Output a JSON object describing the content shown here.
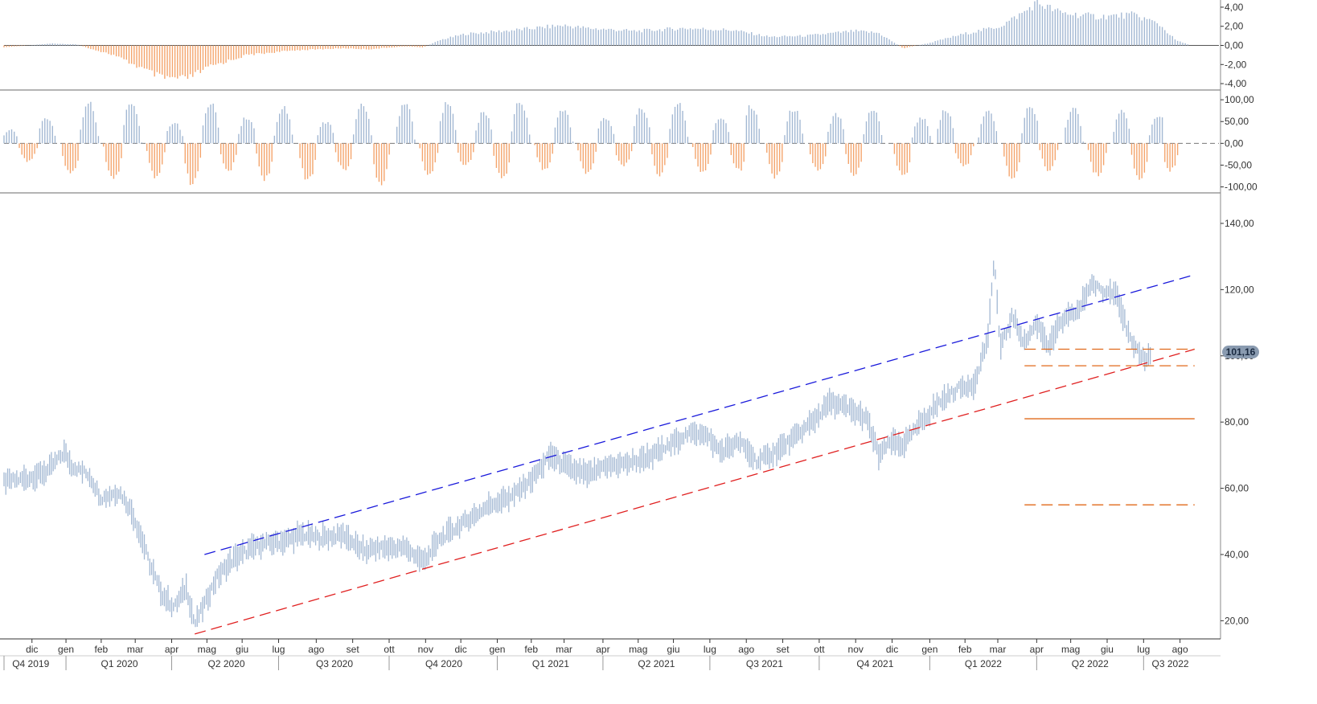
{
  "colors": {
    "positive": "#a3b8d3",
    "negative": "#f4a56d",
    "price": "#a3b8d3",
    "upper_channel": "#1a1adb",
    "lower_channel": "#e02020",
    "levels": "#e0691a",
    "axis": "#333333",
    "divider": "#888888",
    "badge_bg": "#8a9bb0",
    "badge_text": "#1a2a40"
  },
  "chart_data": [
    {
      "type": "bar",
      "panel": "momentum",
      "ylim": [
        -4.5,
        4.5
      ],
      "y_ticks": [
        "4,00",
        "2,00",
        "0,00",
        "-2,00",
        "-4,00"
      ],
      "y_tick_values": [
        4,
        2,
        0,
        -2,
        -4
      ],
      "envelope": [
        [
          0,
          -0.2
        ],
        [
          0.04,
          0.2
        ],
        [
          0.06,
          0.1
        ],
        [
          0.07,
          -0.3
        ],
        [
          0.09,
          -1.0
        ],
        [
          0.11,
          -2.2
        ],
        [
          0.13,
          -3.4
        ],
        [
          0.15,
          -3.5
        ],
        [
          0.17,
          -2.2
        ],
        [
          0.2,
          -1.0
        ],
        [
          0.24,
          -0.5
        ],
        [
          0.28,
          -0.3
        ],
        [
          0.3,
          -0.4
        ],
        [
          0.33,
          -0.1
        ],
        [
          0.345,
          -0.2
        ],
        [
          0.36,
          0.6
        ],
        [
          0.38,
          1.2
        ],
        [
          0.42,
          1.6
        ],
        [
          0.46,
          2.1
        ],
        [
          0.48,
          1.8
        ],
        [
          0.52,
          1.5
        ],
        [
          0.56,
          1.8
        ],
        [
          0.6,
          1.6
        ],
        [
          0.63,
          0.9
        ],
        [
          0.66,
          1.0
        ],
        [
          0.7,
          1.5
        ],
        [
          0.72,
          1.3
        ],
        [
          0.74,
          -0.3
        ],
        [
          0.76,
          0.2
        ],
        [
          0.79,
          1.2
        ],
        [
          0.82,
          2.0
        ],
        [
          0.84,
          3.5
        ],
        [
          0.85,
          4.5
        ],
        [
          0.87,
          3.4
        ],
        [
          0.9,
          3.0
        ],
        [
          0.93,
          3.2
        ],
        [
          0.95,
          2.3
        ],
        [
          0.965,
          0.5
        ],
        [
          0.975,
          0.1
        ]
      ]
    },
    {
      "type": "bar",
      "panel": "oscillator",
      "ylim": [
        -110,
        115
      ],
      "y_ticks": [
        "100,00",
        "50,00",
        "0,00",
        "-50,00",
        "-100,00"
      ],
      "y_tick_values": [
        100,
        50,
        0,
        -50,
        -100
      ],
      "peaks": [
        [
          0.005,
          30
        ],
        [
          0.02,
          -40
        ],
        [
          0.035,
          60
        ],
        [
          0.055,
          -70
        ],
        [
          0.07,
          90
        ],
        [
          0.09,
          -85
        ],
        [
          0.105,
          95
        ],
        [
          0.125,
          -80
        ],
        [
          0.14,
          50
        ],
        [
          0.155,
          -95
        ],
        [
          0.17,
          90
        ],
        [
          0.185,
          -60
        ],
        [
          0.2,
          60
        ],
        [
          0.215,
          -80
        ],
        [
          0.23,
          80
        ],
        [
          0.25,
          -85
        ],
        [
          0.265,
          50
        ],
        [
          0.28,
          -60
        ],
        [
          0.295,
          85
        ],
        [
          0.31,
          -90
        ],
        [
          0.33,
          95
        ],
        [
          0.35,
          -70
        ],
        [
          0.365,
          90
        ],
        [
          0.38,
          -50
        ],
        [
          0.395,
          70
        ],
        [
          0.41,
          -80
        ],
        [
          0.425,
          95
        ],
        [
          0.445,
          -60
        ],
        [
          0.46,
          80
        ],
        [
          0.48,
          -70
        ],
        [
          0.495,
          60
        ],
        [
          0.51,
          -50
        ],
        [
          0.525,
          80
        ],
        [
          0.54,
          -70
        ],
        [
          0.555,
          95
        ],
        [
          0.575,
          -70
        ],
        [
          0.59,
          60
        ],
        [
          0.605,
          -60
        ],
        [
          0.615,
          85
        ],
        [
          0.635,
          -75
        ],
        [
          0.65,
          80
        ],
        [
          0.67,
          -60
        ],
        [
          0.685,
          65
        ],
        [
          0.7,
          -70
        ],
        [
          0.715,
          80
        ],
        [
          0.74,
          -75
        ],
        [
          0.755,
          60
        ],
        [
          0.775,
          75
        ],
        [
          0.79,
          -55
        ],
        [
          0.81,
          80
        ],
        [
          0.83,
          -80
        ],
        [
          0.845,
          85
        ],
        [
          0.86,
          -60
        ],
        [
          0.88,
          80
        ],
        [
          0.9,
          -75
        ],
        [
          0.92,
          70
        ],
        [
          0.935,
          -80
        ],
        [
          0.95,
          65
        ],
        [
          0.96,
          -60
        ]
      ]
    },
    {
      "type": "line",
      "panel": "price",
      "ylim": [
        15,
        148
      ],
      "y_ticks": [
        "140,00",
        "120,00",
        "100,00",
        "80,00",
        "60,00",
        "40,00",
        "20,00"
      ],
      "y_tick_values": [
        140,
        120,
        100,
        80,
        60,
        40,
        20
      ],
      "price_path": [
        [
          0.0,
          62
        ],
        [
          0.02,
          63
        ],
        [
          0.035,
          65
        ],
        [
          0.05,
          71
        ],
        [
          0.055,
          67
        ],
        [
          0.07,
          64
        ],
        [
          0.08,
          57
        ],
        [
          0.095,
          59
        ],
        [
          0.105,
          53
        ],
        [
          0.115,
          43
        ],
        [
          0.12,
          37
        ],
        [
          0.13,
          28
        ],
        [
          0.14,
          24
        ],
        [
          0.15,
          30
        ],
        [
          0.157,
          19
        ],
        [
          0.165,
          25
        ],
        [
          0.175,
          33
        ],
        [
          0.19,
          39
        ],
        [
          0.21,
          43
        ],
        [
          0.23,
          44
        ],
        [
          0.245,
          46
        ],
        [
          0.26,
          45
        ],
        [
          0.28,
          46
        ],
        [
          0.295,
          41
        ],
        [
          0.31,
          42
        ],
        [
          0.33,
          42
        ],
        [
          0.345,
          38
        ],
        [
          0.36,
          45
        ],
        [
          0.38,
          50
        ],
        [
          0.4,
          55
        ],
        [
          0.42,
          58
        ],
        [
          0.435,
          63
        ],
        [
          0.45,
          70
        ],
        [
          0.465,
          66
        ],
        [
          0.48,
          64
        ],
        [
          0.5,
          67
        ],
        [
          0.52,
          68
        ],
        [
          0.54,
          71
        ],
        [
          0.56,
          76
        ],
        [
          0.575,
          77
        ],
        [
          0.59,
          71
        ],
        [
          0.605,
          74
        ],
        [
          0.62,
          68
        ],
        [
          0.635,
          71
        ],
        [
          0.65,
          75
        ],
        [
          0.665,
          80
        ],
        [
          0.68,
          86
        ],
        [
          0.695,
          84
        ],
        [
          0.71,
          81
        ],
        [
          0.72,
          70
        ],
        [
          0.73,
          74
        ],
        [
          0.74,
          73
        ],
        [
          0.755,
          80
        ],
        [
          0.77,
          86
        ],
        [
          0.785,
          90
        ],
        [
          0.8,
          92
        ],
        [
          0.805,
          100
        ],
        [
          0.81,
          105
        ],
        [
          0.815,
          130
        ],
        [
          0.82,
          102
        ],
        [
          0.83,
          112
        ],
        [
          0.84,
          104
        ],
        [
          0.85,
          110
        ],
        [
          0.86,
          103
        ],
        [
          0.87,
          110
        ],
        [
          0.885,
          114
        ],
        [
          0.895,
          122
        ],
        [
          0.905,
          119
        ],
        [
          0.915,
          120
        ],
        [
          0.925,
          107
        ],
        [
          0.93,
          102
        ],
        [
          0.94,
          99
        ],
        [
          0.945,
          101.16
        ]
      ],
      "last_price_label": "101,16",
      "last_price": 101.16,
      "lines": [
        {
          "style": "dashed",
          "color": "upper_channel",
          "from": [
            0.165,
            40
          ],
          "to": [
            0.98,
            124.5
          ]
        },
        {
          "style": "dashed",
          "color": "lower_channel",
          "from": [
            0.157,
            16
          ],
          "to": [
            0.98,
            102
          ]
        },
        {
          "style": "dashed",
          "color": "levels",
          "from": [
            0.84,
            102
          ],
          "to": [
            0.98,
            102
          ]
        },
        {
          "style": "dashed",
          "color": "levels",
          "from": [
            0.84,
            97
          ],
          "to": [
            0.98,
            97
          ]
        },
        {
          "style": "solid",
          "color": "levels",
          "from": [
            0.84,
            81
          ],
          "to": [
            0.98,
            81
          ]
        },
        {
          "style": "dashed",
          "color": "levels",
          "from": [
            0.84,
            55
          ],
          "to": [
            0.98,
            55
          ]
        }
      ]
    }
  ],
  "x_axis": {
    "months": [
      {
        "label": "dic",
        "t": 0.023
      },
      {
        "label": "gen",
        "t": 0.051
      },
      {
        "label": "feb",
        "t": 0.08
      },
      {
        "label": "mar",
        "t": 0.108
      },
      {
        "label": "apr",
        "t": 0.138
      },
      {
        "label": "mag",
        "t": 0.167
      },
      {
        "label": "giu",
        "t": 0.196
      },
      {
        "label": "lug",
        "t": 0.226
      },
      {
        "label": "ago",
        "t": 0.257
      },
      {
        "label": "set",
        "t": 0.287
      },
      {
        "label": "ott",
        "t": 0.317
      },
      {
        "label": "nov",
        "t": 0.347
      },
      {
        "label": "dic",
        "t": 0.376
      },
      {
        "label": "gen",
        "t": 0.406
      },
      {
        "label": "feb",
        "t": 0.434
      },
      {
        "label": "mar",
        "t": 0.461
      },
      {
        "label": "apr",
        "t": 0.493
      },
      {
        "label": "mag",
        "t": 0.522
      },
      {
        "label": "giu",
        "t": 0.551
      },
      {
        "label": "lug",
        "t": 0.581
      },
      {
        "label": "ago",
        "t": 0.611
      },
      {
        "label": "set",
        "t": 0.641
      },
      {
        "label": "ott",
        "t": 0.671
      },
      {
        "label": "nov",
        "t": 0.701
      },
      {
        "label": "dic",
        "t": 0.731
      },
      {
        "label": "gen",
        "t": 0.762
      },
      {
        "label": "feb",
        "t": 0.791
      },
      {
        "label": "mar",
        "t": 0.818
      },
      {
        "label": "apr",
        "t": 0.85
      },
      {
        "label": "mag",
        "t": 0.878
      },
      {
        "label": "giu",
        "t": 0.908
      },
      {
        "label": "lug",
        "t": 0.938
      },
      {
        "label": "ago",
        "t": 0.968
      }
    ],
    "quarters": [
      {
        "label": "Q4 2019",
        "t": 0.022
      },
      {
        "label": "Q1 2020",
        "t": 0.095
      },
      {
        "label": "Q2 2020",
        "t": 0.183
      },
      {
        "label": "Q3 2020",
        "t": 0.272
      },
      {
        "label": "Q4 2020",
        "t": 0.362
      },
      {
        "label": "Q1 2021",
        "t": 0.45
      },
      {
        "label": "Q2 2021",
        "t": 0.537
      },
      {
        "label": "Q3 2021",
        "t": 0.626
      },
      {
        "label": "Q4 2021",
        "t": 0.717
      },
      {
        "label": "Q1 2022",
        "t": 0.806
      },
      {
        "label": "Q2 2022",
        "t": 0.894
      },
      {
        "label": "Q3 2022",
        "t": 0.96
      }
    ],
    "quarter_boundaries": [
      0.0,
      0.051,
      0.138,
      0.226,
      0.317,
      0.406,
      0.493,
      0.581,
      0.671,
      0.762,
      0.85,
      0.938
    ]
  }
}
